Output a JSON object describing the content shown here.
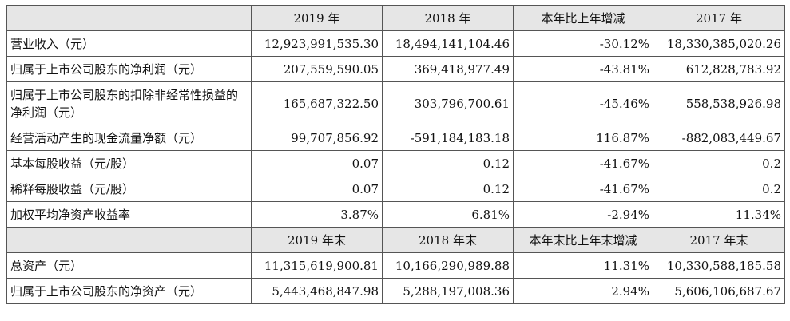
{
  "header1": [
    "2019 年",
    "2018 年",
    "本年比上年增减",
    "2017 年"
  ],
  "rows1": [
    {
      "label": "营业收入（元）",
      "values": [
        "12,923,991,535.30",
        "18,494,141,104.46",
        "-30.12%",
        "18,330,385,020.26"
      ]
    },
    {
      "label": "归属于上市公司股东的净利润（元）",
      "values": [
        "207,559,590.05",
        "369,418,977.49",
        "-43.81%",
        "612,828,783.92"
      ]
    },
    {
      "label": "归属于上市公司股东的扣除非经常性损益的净利润（元）",
      "values": [
        "165,687,322.50",
        "303,796,700.61",
        "-45.46%",
        "558,538,926.98"
      ]
    },
    {
      "label": "经营活动产生的现金流量净额（元）",
      "values": [
        "99,707,856.92",
        "-591,184,183.18",
        "116.87%",
        "-882,083,449.67"
      ]
    },
    {
      "label": "基本每股收益（元/股）",
      "values": [
        "0.07",
        "0.12",
        "-41.67%",
        "0.2"
      ]
    },
    {
      "label": "稀释每股收益（元/股）",
      "values": [
        "0.07",
        "0.12",
        "-41.67%",
        "0.2"
      ]
    },
    {
      "label": "加权平均净资产收益率",
      "values": [
        "3.87%",
        "6.81%",
        "-2.94%",
        "11.34%"
      ]
    }
  ],
  "header2": [
    "2019 年末",
    "2018 年末",
    "本年末比上年末增减",
    "2017 年末"
  ],
  "rows2": [
    {
      "label": "总资产（元）",
      "values": [
        "11,315,619,900.81",
        "10,166,290,989.88",
        "11.31%",
        "10,330,588,185.58"
      ]
    },
    {
      "label": "归属于上市公司股东的净资产（元）",
      "values": [
        "5,443,468,847.98",
        "5,288,197,008.36",
        "2.94%",
        "5,606,106,687.67"
      ]
    }
  ]
}
